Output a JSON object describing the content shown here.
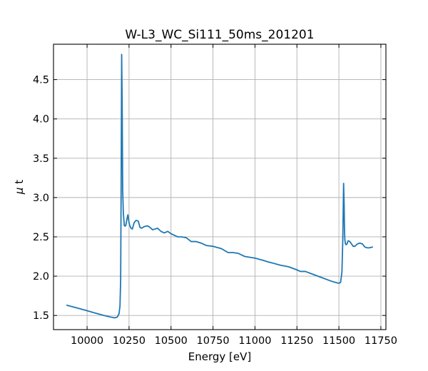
{
  "chart_data": {
    "type": "line",
    "title": "W-L3_WC_Si111_50ms_201201",
    "xlabel": "Energy [eV]",
    "ylabel_prefix": "μ",
    "ylabel_suffix": " t",
    "xlim": [
      9800,
      11780
    ],
    "ylim": [
      1.32,
      4.95
    ],
    "xticks": [
      10000,
      10250,
      10500,
      10750,
      11000,
      11250,
      11500,
      11750
    ],
    "yticks": [
      1.5,
      2.0,
      2.5,
      3.0,
      3.5,
      4.0,
      4.5
    ],
    "xtick_labels": [
      "10000",
      "10250",
      "10500",
      "10750",
      "11000",
      "11250",
      "11500",
      "11750"
    ],
    "ytick_labels": [
      "1.5",
      "2.0",
      "2.5",
      "3.0",
      "3.5",
      "4.0",
      "4.5"
    ],
    "grid": true,
    "color": "#1f77b4",
    "series": [
      {
        "x": [
          9880,
          9950,
          10000,
          10050,
          10100,
          10140,
          10165,
          10180,
          10190,
          10196,
          10200,
          10203,
          10206,
          10209,
          10212,
          10216,
          10222,
          10230,
          10237,
          10243,
          10250,
          10255,
          10262,
          10270,
          10280,
          10292,
          10305,
          10315,
          10325,
          10340,
          10360,
          10375,
          10390,
          10405,
          10420,
          10440,
          10460,
          10480,
          10500,
          10520,
          10540,
          10560,
          10590,
          10620,
          10650,
          10680,
          10710,
          10750,
          10800,
          10840,
          10870,
          10900,
          10940,
          10970,
          11000,
          11050,
          11080,
          11100,
          11150,
          11200,
          11250,
          11270,
          11300,
          11350,
          11400,
          11450,
          11480,
          11500,
          11510,
          11518,
          11523,
          11528,
          11531,
          11533,
          11535,
          11538,
          11542,
          11548,
          11555,
          11565,
          11575,
          11585,
          11595,
          11610,
          11625,
          11640,
          11655,
          11670,
          11680,
          11700
        ],
        "y": [
          1.63,
          1.59,
          1.56,
          1.53,
          1.5,
          1.48,
          1.47,
          1.48,
          1.52,
          1.62,
          1.95,
          3.2,
          4.82,
          4.2,
          3.1,
          2.8,
          2.64,
          2.64,
          2.72,
          2.78,
          2.68,
          2.64,
          2.61,
          2.6,
          2.68,
          2.71,
          2.7,
          2.62,
          2.61,
          2.63,
          2.64,
          2.62,
          2.59,
          2.6,
          2.61,
          2.57,
          2.55,
          2.57,
          2.54,
          2.52,
          2.5,
          2.5,
          2.49,
          2.44,
          2.44,
          2.42,
          2.39,
          2.38,
          2.35,
          2.3,
          2.3,
          2.29,
          2.25,
          2.24,
          2.23,
          2.2,
          2.18,
          2.17,
          2.14,
          2.12,
          2.08,
          2.06,
          2.06,
          2.02,
          1.98,
          1.94,
          1.92,
          1.91,
          1.92,
          2.05,
          2.45,
          3.18,
          2.92,
          2.62,
          2.48,
          2.42,
          2.4,
          2.41,
          2.45,
          2.44,
          2.41,
          2.38,
          2.38,
          2.41,
          2.42,
          2.41,
          2.37,
          2.36,
          2.36,
          2.37
        ]
      }
    ]
  }
}
